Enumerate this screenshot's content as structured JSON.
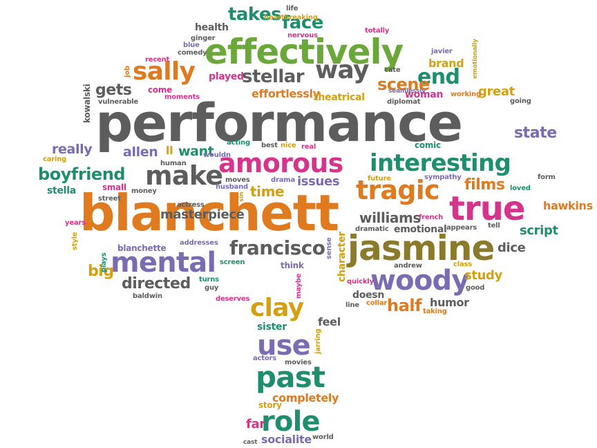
{
  "colors": {
    "gray": "#5d5d5d",
    "green": "#6aa83a",
    "orange": "#e07a1f",
    "purple": "#7b6bb3",
    "pink": "#d6338b",
    "teal": "#1e8f6e",
    "gold": "#d4a012",
    "olive": "#8a7a2a"
  },
  "words": [
    "performance",
    "blanchett",
    "effectively",
    "amorous",
    "true",
    "jasmine",
    "interesting",
    "tragic",
    "mental",
    "woody",
    "francisco",
    "make",
    "sally",
    "way",
    "stellar",
    "takes",
    "face",
    "end",
    "scene",
    "use",
    "past",
    "role",
    "clay",
    "half",
    "boyfriend",
    "really",
    "allen",
    "want",
    "gets",
    "films",
    "williams",
    "directed",
    "big",
    "time",
    "issues",
    "masterpiece",
    "brand",
    "great",
    "state",
    "script",
    "study",
    "hawkins",
    "dice",
    "humor",
    "doesn",
    "feel",
    "sister",
    "completely",
    "story",
    "socialite",
    "far",
    "health",
    "blue",
    "comedy",
    "played",
    "effortlessly",
    "theatrical",
    "woman",
    "working",
    "cate",
    "javier",
    "totally",
    "kowalski",
    "moments",
    "come",
    "vulnerable",
    "stella",
    "character",
    "andrew",
    "emotional",
    "dramatic",
    "french",
    "actress",
    "street",
    "years",
    "ll",
    "style",
    "plays",
    "blanchette",
    "addresses",
    "screen",
    "baldwin",
    "turns",
    "guy",
    "deserves",
    "think",
    "sense",
    "maybe",
    "quickly",
    "line",
    "collar",
    "good",
    "taking",
    "caring",
    "human",
    "money",
    "small",
    "moves",
    "husband",
    "acting",
    "best",
    "nice",
    "real",
    "wouldn",
    "drama",
    "comic",
    "sympathy",
    "future",
    "appears",
    "tell",
    "class",
    "loved",
    "form",
    "going",
    "emotionally",
    "seamlessly",
    "diplomat",
    "nervous",
    "heartbreaking",
    "life",
    "ginger",
    "recent",
    "job",
    "actors",
    "movies",
    "jarring",
    "world",
    "cast",
    "sin"
  ]
}
